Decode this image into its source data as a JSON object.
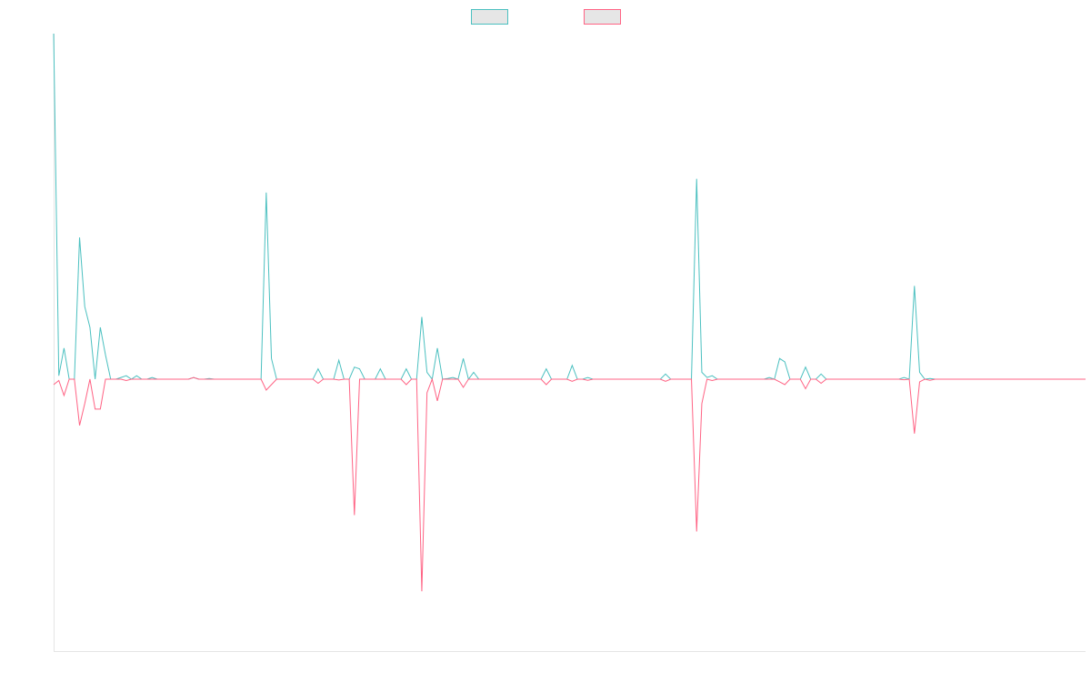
{
  "chart_data": {
    "type": "line",
    "title": "",
    "xlabel": "",
    "ylabel": "",
    "grid": false,
    "legend_position": "top-center",
    "colors": {
      "series_a": "#4bc0c0",
      "series_b": "#ff6384",
      "legend_fill": "#e6e6e6",
      "axis": "#e5e5e5"
    },
    "ylim": [
      -1.0,
      1.0
    ],
    "x_count": 200,
    "series": [
      {
        "name": "",
        "color": "#4bc0c0",
        "points": [
          [
            0,
            1.0
          ],
          [
            1,
            0.01
          ],
          [
            2,
            0.09
          ],
          [
            3,
            0.0
          ],
          [
            4,
            0.0
          ],
          [
            5,
            0.41
          ],
          [
            6,
            0.21
          ],
          [
            7,
            0.15
          ],
          [
            8,
            0.0
          ],
          [
            9,
            0.15
          ],
          [
            10,
            0.07
          ],
          [
            11,
            0.0
          ],
          [
            12,
            0.0
          ],
          [
            13,
            0.005
          ],
          [
            14,
            0.01
          ],
          [
            15,
            0.0
          ],
          [
            16,
            0.01
          ],
          [
            17,
            0.0
          ],
          [
            18,
            0.0
          ],
          [
            19,
            0.005
          ],
          [
            20,
            0.0
          ],
          [
            26,
            0.0
          ],
          [
            27,
            0.005
          ],
          [
            28,
            0.0
          ],
          [
            29,
            0.0
          ],
          [
            30,
            0.002
          ],
          [
            31,
            0.0
          ],
          [
            39,
            0.0
          ],
          [
            40,
            0.0
          ],
          [
            41,
            0.54
          ],
          [
            42,
            0.06
          ],
          [
            43,
            0.0
          ],
          [
            50,
            0.0
          ],
          [
            51,
            0.03
          ],
          [
            52,
            0.0
          ],
          [
            54,
            0.0
          ],
          [
            55,
            0.055
          ],
          [
            56,
            0.0
          ],
          [
            57,
            0.0
          ],
          [
            58,
            0.035
          ],
          [
            59,
            0.03
          ],
          [
            60,
            0.0
          ],
          [
            62,
            0.0
          ],
          [
            63,
            0.03
          ],
          [
            64,
            0.0
          ],
          [
            67,
            0.0
          ],
          [
            68,
            0.03
          ],
          [
            69,
            0.0
          ],
          [
            70,
            0.0
          ],
          [
            71,
            0.18
          ],
          [
            72,
            0.02
          ],
          [
            73,
            0.0
          ],
          [
            74,
            0.09
          ],
          [
            75,
            0.0
          ],
          [
            76,
            0.002
          ],
          [
            77,
            0.005
          ],
          [
            78,
            0.0
          ],
          [
            79,
            0.06
          ],
          [
            80,
            0.0
          ],
          [
            81,
            0.02
          ],
          [
            82,
            0.0
          ],
          [
            94,
            0.0
          ],
          [
            95,
            0.03
          ],
          [
            96,
            0.0
          ],
          [
            99,
            0.0
          ],
          [
            100,
            0.04
          ],
          [
            101,
            0.0
          ],
          [
            102,
            0.0
          ],
          [
            103,
            0.005
          ],
          [
            104,
            0.0
          ],
          [
            117,
            0.0
          ],
          [
            118,
            0.015
          ],
          [
            119,
            0.0
          ],
          [
            122,
            0.0
          ],
          [
            123,
            0.0
          ],
          [
            124,
            0.58
          ],
          [
            125,
            0.02
          ],
          [
            126,
            0.005
          ],
          [
            127,
            0.01
          ],
          [
            128,
            0.0
          ],
          [
            137,
            0.0
          ],
          [
            138,
            0.005
          ],
          [
            139,
            0.0
          ],
          [
            140,
            0.06
          ],
          [
            141,
            0.05
          ],
          [
            142,
            0.0
          ],
          [
            144,
            0.0
          ],
          [
            145,
            0.035
          ],
          [
            146,
            0.0
          ],
          [
            147,
            0.0
          ],
          [
            148,
            0.015
          ],
          [
            149,
            0.0
          ],
          [
            163,
            0.0
          ],
          [
            164,
            0.005
          ],
          [
            165,
            0.0
          ],
          [
            166,
            0.27
          ],
          [
            167,
            0.02
          ],
          [
            168,
            0.0
          ],
          [
            169,
            0.002
          ],
          [
            170,
            0.0
          ],
          [
            199,
            0.0
          ]
        ]
      },
      {
        "name": "",
        "color": "#ff6384",
        "points": [
          [
            0,
            -0.02
          ],
          [
            1,
            -0.005
          ],
          [
            2,
            -0.06
          ],
          [
            3,
            0.0
          ],
          [
            4,
            0.0
          ],
          [
            5,
            -0.17
          ],
          [
            6,
            -0.09
          ],
          [
            7,
            0.0
          ],
          [
            8,
            -0.11
          ],
          [
            9,
            -0.11
          ],
          [
            10,
            0.0
          ],
          [
            12,
            0.0
          ],
          [
            13,
            0.0
          ],
          [
            14,
            -0.005
          ],
          [
            15,
            0.0
          ],
          [
            16,
            0.0
          ],
          [
            17,
            0.0
          ],
          [
            18,
            0.0
          ],
          [
            19,
            0.0
          ],
          [
            20,
            0.0
          ],
          [
            26,
            0.0
          ],
          [
            27,
            0.005
          ],
          [
            28,
            0.0
          ],
          [
            39,
            0.0
          ],
          [
            40,
            0.0
          ],
          [
            41,
            -0.04
          ],
          [
            42,
            -0.02
          ],
          [
            43,
            0.0
          ],
          [
            50,
            0.0
          ],
          [
            51,
            -0.015
          ],
          [
            52,
            0.0
          ],
          [
            54,
            0.0
          ],
          [
            55,
            -0.003
          ],
          [
            56,
            0.0
          ],
          [
            57,
            0.0
          ],
          [
            58,
            -0.5
          ],
          [
            59,
            0.0
          ],
          [
            60,
            0.0
          ],
          [
            62,
            0.0
          ],
          [
            63,
            0.0
          ],
          [
            64,
            0.0
          ],
          [
            67,
            0.0
          ],
          [
            68,
            -0.02
          ],
          [
            69,
            0.0
          ],
          [
            70,
            0.0
          ],
          [
            71,
            -0.78
          ],
          [
            72,
            -0.05
          ],
          [
            73,
            0.0
          ],
          [
            74,
            -0.08
          ],
          [
            75,
            0.0
          ],
          [
            76,
            0.0
          ],
          [
            77,
            0.0
          ],
          [
            78,
            0.0
          ],
          [
            79,
            -0.03
          ],
          [
            80,
            0.0
          ],
          [
            81,
            0.0
          ],
          [
            82,
            0.0
          ],
          [
            94,
            0.0
          ],
          [
            95,
            -0.02
          ],
          [
            96,
            0.0
          ],
          [
            99,
            0.0
          ],
          [
            100,
            -0.008
          ],
          [
            101,
            0.0
          ],
          [
            102,
            0.0
          ],
          [
            103,
            -0.004
          ],
          [
            104,
            0.0
          ],
          [
            117,
            0.0
          ],
          [
            118,
            -0.008
          ],
          [
            119,
            0.0
          ],
          [
            122,
            0.0
          ],
          [
            123,
            0.0
          ],
          [
            124,
            -0.56
          ],
          [
            125,
            -0.09
          ],
          [
            126,
            0.0
          ],
          [
            127,
            -0.005
          ],
          [
            128,
            0.0
          ],
          [
            137,
            0.0
          ],
          [
            138,
            0.0
          ],
          [
            139,
            0.0
          ],
          [
            140,
            -0.01
          ],
          [
            141,
            -0.02
          ],
          [
            142,
            0.0
          ],
          [
            144,
            0.0
          ],
          [
            145,
            -0.035
          ],
          [
            146,
            0.0
          ],
          [
            147,
            0.0
          ],
          [
            148,
            -0.015
          ],
          [
            149,
            0.0
          ],
          [
            163,
            0.0
          ],
          [
            164,
            -0.002
          ],
          [
            165,
            0.0
          ],
          [
            166,
            -0.2
          ],
          [
            167,
            -0.01
          ],
          [
            168,
            0.0
          ],
          [
            169,
            -0.004
          ],
          [
            170,
            0.0
          ],
          [
            199,
            0.0
          ]
        ]
      }
    ]
  }
}
